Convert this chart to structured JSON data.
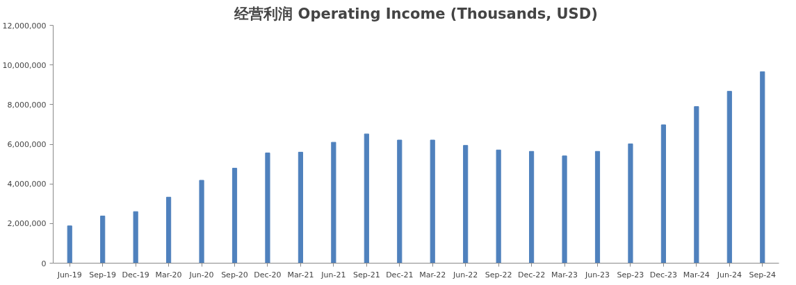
{
  "chart_data": {
    "type": "bar",
    "title": "经营利润 Operating Income (Thousands, USD)",
    "categories": [
      "Jun-19",
      "Sep-19",
      "Dec-19",
      "Mar-20",
      "Jun-20",
      "Sep-20",
      "Dec-20",
      "Mar-21",
      "Jun-21",
      "Sep-21",
      "Dec-21",
      "Mar-22",
      "Jun-22",
      "Sep-22",
      "Dec-22",
      "Mar-23",
      "Jun-23",
      "Sep-23",
      "Dec-23",
      "Mar-24",
      "Jun-24",
      "Sep-24"
    ],
    "values": [
      1880000,
      2380000,
      2600000,
      3330000,
      4180000,
      4790000,
      5560000,
      5600000,
      6100000,
      6520000,
      6210000,
      6210000,
      5940000,
      5710000,
      5640000,
      5410000,
      5640000,
      6020000,
      6980000,
      7900000,
      8670000,
      9660000
    ],
    "color": "#4f81bd",
    "ylim": [
      0,
      12000000
    ],
    "yticks": [
      {
        "value": 0,
        "label": "0"
      },
      {
        "value": 2000000,
        "label": "2,000,000"
      },
      {
        "value": 4000000,
        "label": "4,000,000"
      },
      {
        "value": 6000000,
        "label": "6,000,000"
      },
      {
        "value": 8000000,
        "label": "8,000,000"
      },
      {
        "value": 10000000,
        "label": "10,000,000"
      },
      {
        "value": 12000000,
        "label": "12,000,000"
      }
    ],
    "grid": false
  }
}
